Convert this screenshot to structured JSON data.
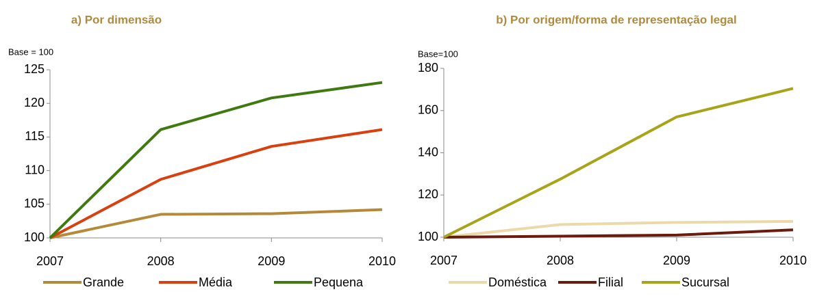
{
  "chart_data": [
    {
      "type": "line",
      "title": "a) Por dimensão",
      "ylabel": "Base = 100",
      "categories": [
        "2007",
        "2008",
        "2009",
        "2010"
      ],
      "series": [
        {
          "name": "Grande",
          "color": "#b5893a",
          "values": [
            100,
            103.5,
            103.6,
            104.2
          ]
        },
        {
          "name": "Média",
          "color": "#d9400f",
          "values": [
            100,
            108.7,
            113.6,
            116.1
          ]
        },
        {
          "name": "Pequena",
          "color": "#3f7a10",
          "values": [
            100,
            116.1,
            120.8,
            123.1
          ]
        }
      ],
      "ylim": [
        100,
        125
      ],
      "yticks": [
        100,
        105,
        110,
        115,
        120,
        125
      ]
    },
    {
      "type": "line",
      "title": "b) Por origem/forma de representação legal",
      "ylabel": "Base=100",
      "categories": [
        "2007",
        "2008",
        "2009",
        "2010"
      ],
      "series": [
        {
          "name": "Doméstica",
          "color": "#ecd9a8",
          "values": [
            100,
            106,
            107,
            107.5
          ]
        },
        {
          "name": "Filial",
          "color": "#6b1a0c",
          "values": [
            100,
            100.5,
            101,
            103.5
          ]
        },
        {
          "name": "Sucursal",
          "color": "#a8a41a",
          "values": [
            100,
            127.5,
            157,
            170.5
          ]
        }
      ],
      "ylim": [
        100,
        180
      ],
      "yticks": [
        100,
        120,
        140,
        160,
        180
      ]
    }
  ]
}
